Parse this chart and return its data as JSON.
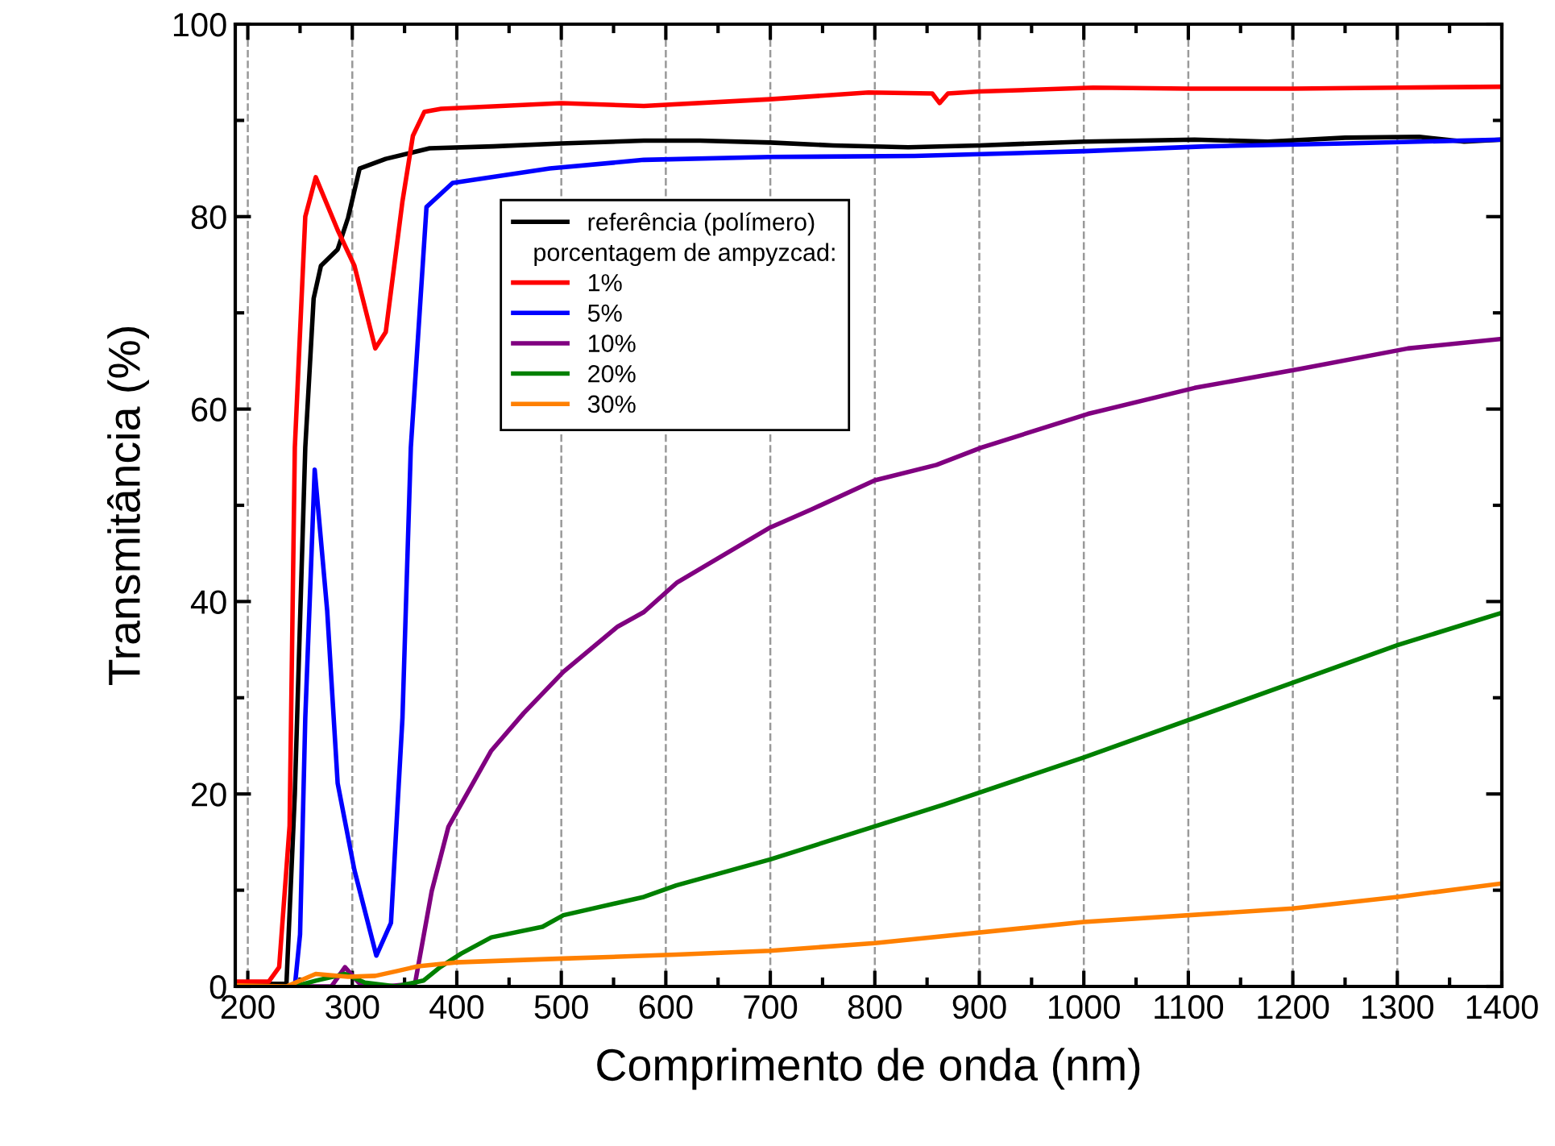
{
  "chart_data": {
    "type": "line",
    "xlabel": "Comprimento de onda (nm)",
    "ylabel": "Transmitância (%)",
    "legend_title": "porcentagem de ampyzcad:",
    "xlim": [
      188,
      1400
    ],
    "ylim": [
      0,
      100
    ],
    "xticks": [
      200,
      300,
      400,
      500,
      600,
      700,
      800,
      900,
      1000,
      1100,
      1200,
      1300,
      1400
    ],
    "yticks": [
      0,
      20,
      40,
      60,
      80,
      100
    ],
    "grid": "x",
    "legend": "top left",
    "line_style": "solid",
    "marker": "none",
    "series": [
      {
        "name": "referência (polímero)",
        "color": "#000000",
        "x": [
          188,
          237,
          245,
          255,
          263,
          270,
          286,
          296,
          307,
          332,
          374,
          435,
          500,
          579,
          633,
          700,
          760,
          832,
          900,
          1000,
          1106,
          1176,
          1250,
          1321,
          1364,
          1400
        ],
        "values": [
          0.2,
          0.3,
          20,
          56,
          71.5,
          74.9,
          76.6,
          79.9,
          85,
          86,
          87.1,
          87.3,
          87.6,
          87.9,
          87.9,
          87.7,
          87.4,
          87.2,
          87.4,
          87.8,
          88.0,
          87.8,
          88.2,
          88.3,
          87.8,
          88.0
        ]
      },
      {
        "name": "1%",
        "color": "#ff0000",
        "x": [
          188,
          220,
          230,
          240,
          245,
          255,
          265,
          286,
          302,
          322,
          332,
          348,
          358,
          369,
          385,
          500,
          579,
          700,
          794,
          855,
          862,
          870,
          900,
          1009,
          1100,
          1200,
          1300,
          1400
        ],
        "values": [
          0.5,
          0.5,
          2,
          16.7,
          56,
          80,
          84.1,
          78.6,
          74.9,
          66.3,
          68,
          81.6,
          88.4,
          90.9,
          91.2,
          91.8,
          91.5,
          92.2,
          92.9,
          92.8,
          91.8,
          92.8,
          93.0,
          93.4,
          93.3,
          93.3,
          93.4,
          93.5
        ]
      },
      {
        "name": "5%",
        "color": "#0000ff",
        "x": [
          188,
          245,
          250,
          255,
          264,
          276,
          286,
          302,
          323,
          337,
          348,
          356,
          371,
          396,
          489,
          579,
          700,
          838,
          1000,
          1117,
          1250,
          1400
        ],
        "values": [
          0,
          0,
          5.4,
          27.9,
          53.7,
          39,
          21.1,
          12.1,
          3.2,
          6.6,
          27.9,
          56,
          81,
          83.5,
          85,
          85.9,
          86.2,
          86.3,
          86.8,
          87.3,
          87.6,
          88.0
        ]
      },
      {
        "name": "10%",
        "color": "#800080",
        "x": [
          188,
          280,
          293,
          306,
          332,
          360,
          376,
          392,
          433,
          464,
          502,
          554,
          579,
          611,
          700,
          740,
          800,
          859,
          902,
          1004,
          1106,
          1208,
          1310,
          1400
        ],
        "values": [
          0,
          0,
          2.0,
          0.4,
          0,
          0.3,
          9.9,
          16.6,
          24.5,
          28.4,
          32.7,
          37.4,
          38.9,
          42,
          47.7,
          49.6,
          52.6,
          54.2,
          56.0,
          59.5,
          62.2,
          64.2,
          66.3,
          67.3
        ]
      },
      {
        "name": "20%",
        "color": "#008000",
        "x": [
          188,
          245,
          265,
          293,
          312,
          342,
          368,
          384,
          404,
          433,
          482,
          502,
          579,
          610,
          700,
          866,
          1000,
          1201,
          1301,
          1399
        ],
        "values": [
          0,
          0,
          0.6,
          1.3,
          0.4,
          0,
          0.6,
          2,
          3.4,
          5.1,
          6.2,
          7.4,
          9.3,
          10.5,
          13.2,
          18.9,
          23.8,
          31.6,
          35.5,
          38.8
        ]
      },
      {
        "name": "30%",
        "color": "#ff8000",
        "x": [
          188,
          237,
          265,
          296,
          322,
          343,
          363,
          399,
          502,
          610,
          700,
          800,
          1000,
          1200,
          1300,
          1400
        ],
        "values": [
          0.1,
          0,
          1.3,
          1.0,
          1.1,
          1.6,
          2.1,
          2.5,
          2.9,
          3.3,
          3.7,
          4.5,
          6.7,
          8.1,
          9.3,
          10.7
        ]
      }
    ]
  }
}
